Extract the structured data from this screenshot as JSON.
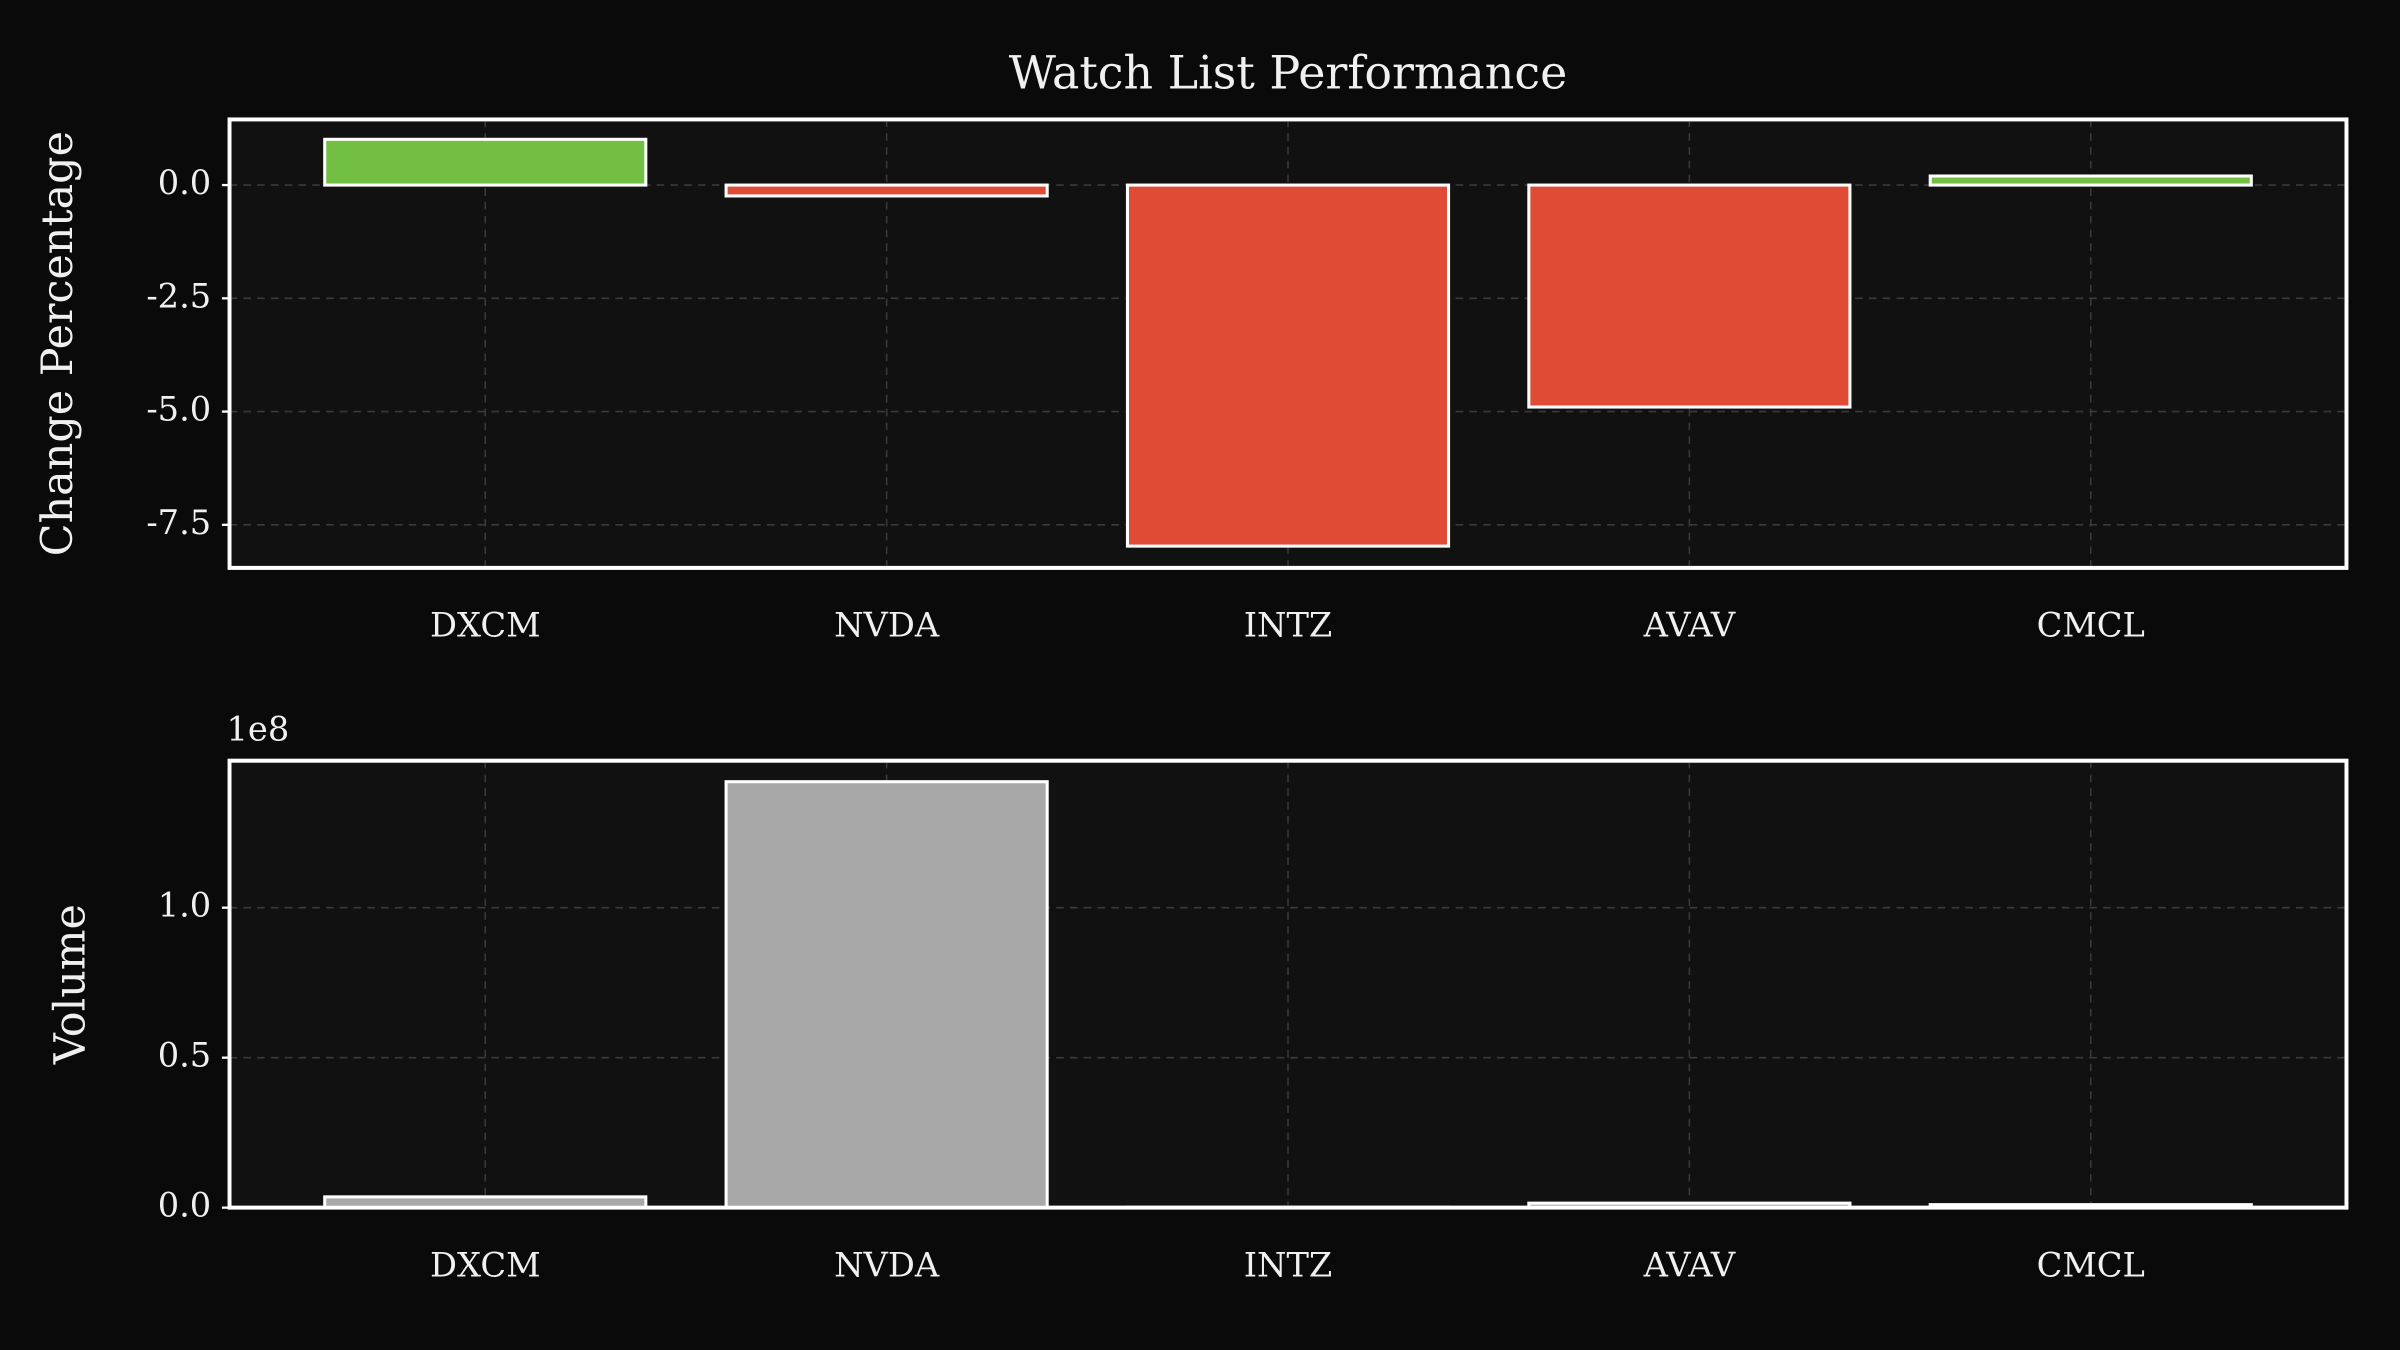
{
  "chart_data": [
    {
      "type": "bar",
      "title": "Watch List Performance",
      "ylabel": "Change Percentage",
      "categories": [
        "DXCM",
        "NVDA",
        "INTZ",
        "AVAV",
        "CMCL"
      ],
      "values": [
        1.01,
        -0.24,
        -7.97,
        -4.9,
        0.2
      ],
      "colors": [
        "#72bf44",
        "#e04b35",
        "#e04b35",
        "#e04b35",
        "#72bf44"
      ],
      "ylim": [
        -8.45,
        1.45
      ],
      "yticks": [
        -7.5,
        {
          "value": -5,
          "label": "-5.0"
        },
        -2.5,
        {
          "value": 0,
          "label": "0.0"
        }
      ],
      "grid": true
    },
    {
      "type": "bar",
      "ylabel": "Volume",
      "y_offset_label": "1e8",
      "categories": [
        "DXCM",
        "NVDA",
        "INTZ",
        "AVAV",
        "CMCL"
      ],
      "values": [
        3600000,
        142000000,
        100000,
        1500000,
        1000000
      ],
      "color": "#a8a8a8",
      "ylim": [
        0,
        149000000
      ],
      "yticks": [
        {
          "value": 0,
          "label": "0.0"
        },
        {
          "value": 50000000,
          "label": "0.5"
        },
        {
          "value": 100000000,
          "label": "1.0"
        }
      ],
      "grid": true
    }
  ]
}
